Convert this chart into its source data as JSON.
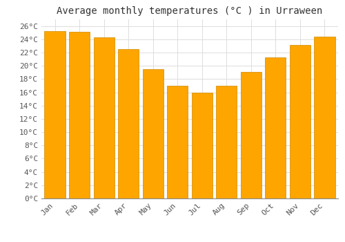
{
  "title": "Average monthly temperatures (°C ) in Urraween",
  "months": [
    "Jan",
    "Feb",
    "Mar",
    "Apr",
    "May",
    "Jun",
    "Jul",
    "Aug",
    "Sep",
    "Oct",
    "Nov",
    "Dec"
  ],
  "values": [
    25.2,
    25.1,
    24.3,
    22.5,
    19.5,
    17.0,
    15.9,
    17.0,
    19.1,
    21.3,
    23.1,
    24.4
  ],
  "bar_color": "#FFA500",
  "bar_edge_color": "#CC8800",
  "background_color": "#FFFFFF",
  "grid_color": "#DDDDDD",
  "ylim": [
    0,
    27
  ],
  "ytick_step": 2,
  "title_fontsize": 10,
  "tick_fontsize": 8,
  "font_family": "monospace"
}
